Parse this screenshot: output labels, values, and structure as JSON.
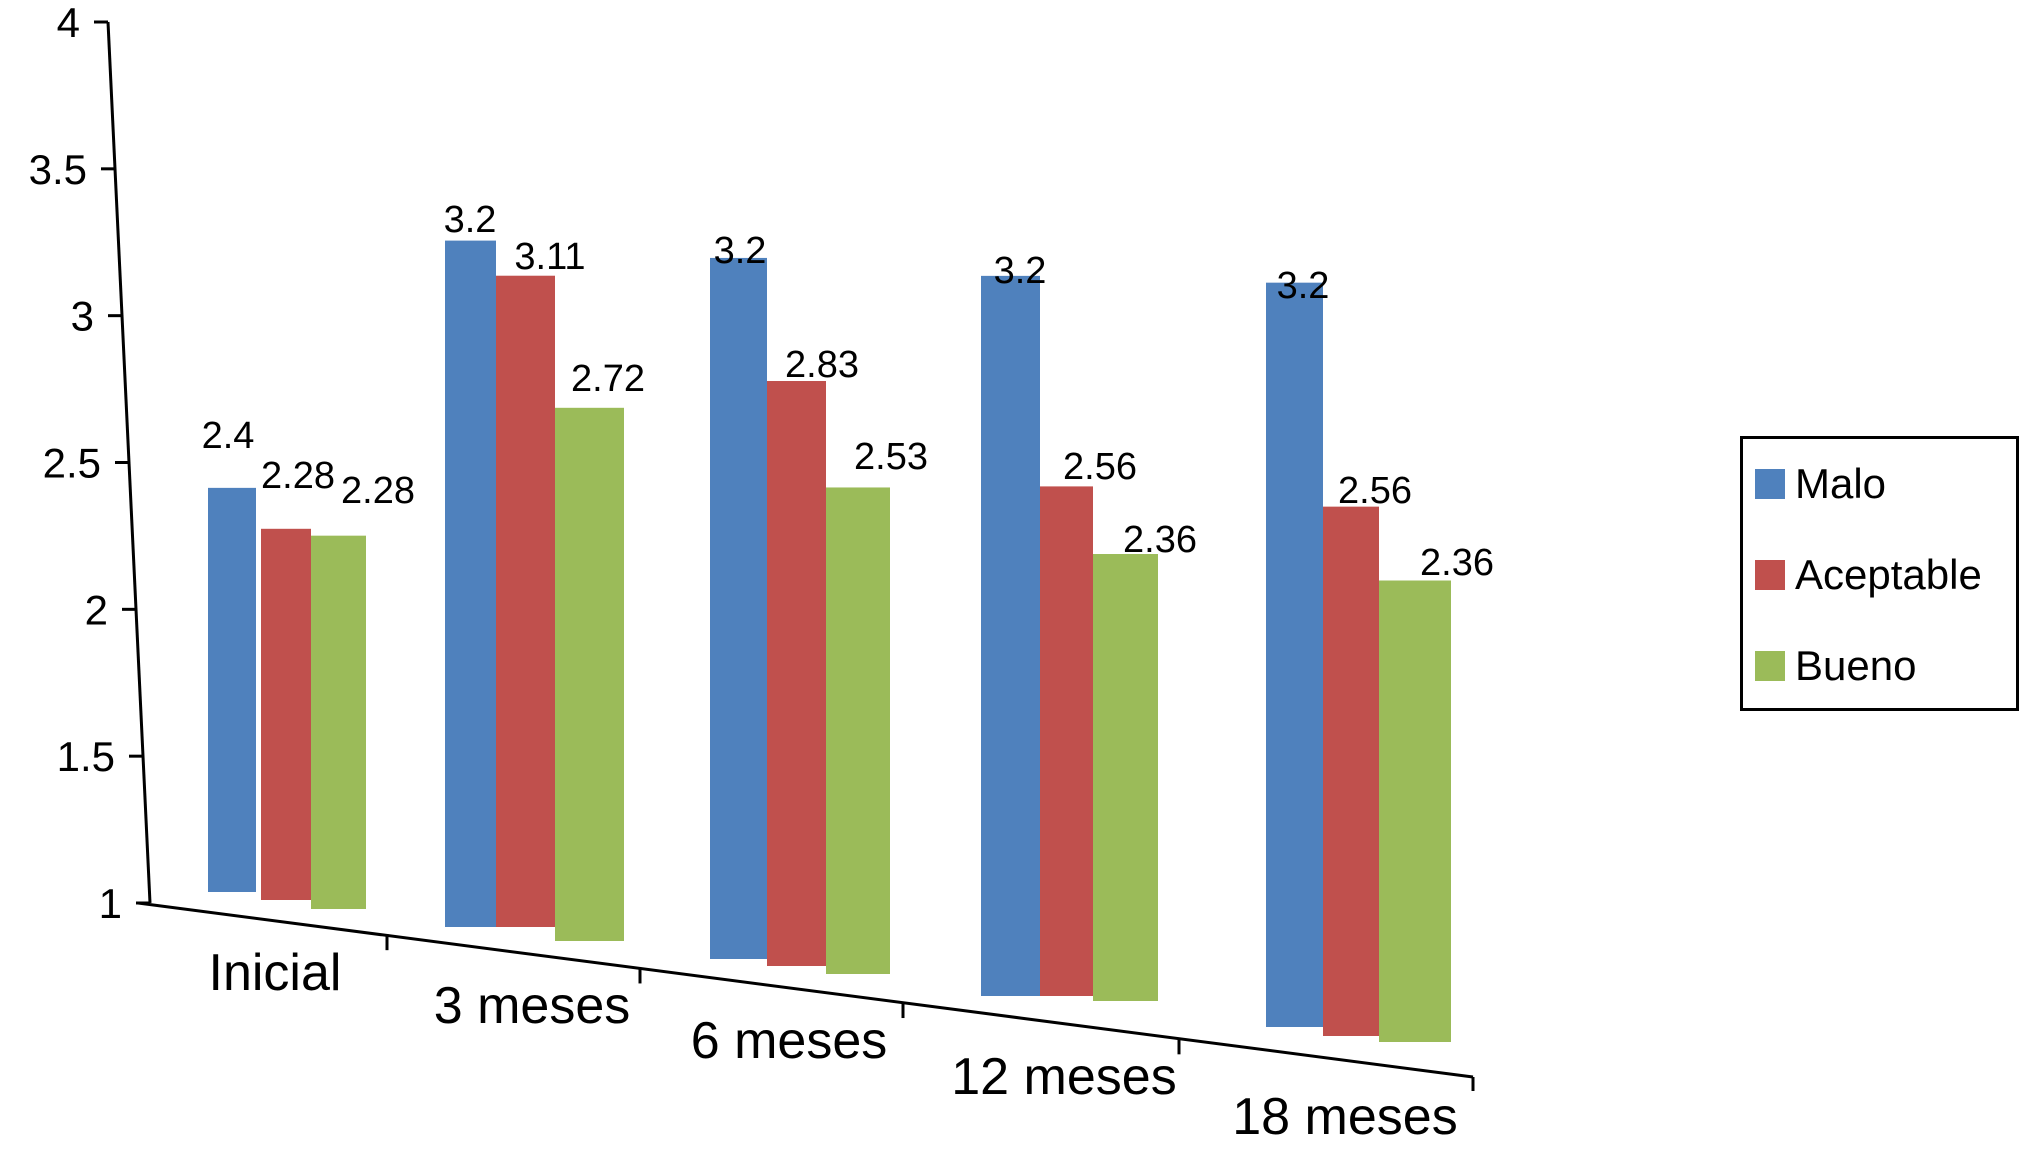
{
  "chart_data": {
    "type": "bar",
    "categories": [
      "Inicial",
      "3 meses",
      "6 meses",
      "12 meses",
      "18 meses"
    ],
    "series": [
      {
        "name": "Malo",
        "color": "#4f81bd",
        "values": [
          2.4,
          3.2,
          3.2,
          3.2,
          3.2
        ]
      },
      {
        "name": "Aceptable",
        "color": "#c0504d",
        "values": [
          2.28,
          3.11,
          2.83,
          2.56,
          2.56
        ]
      },
      {
        "name": "Bueno",
        "color": "#9bbb59",
        "values": [
          2.28,
          2.72,
          2.53,
          2.36,
          2.36
        ]
      }
    ],
    "y_ticks": [
      "1",
      "1.5",
      "2",
      "2.5",
      "3",
      "3.5",
      "4"
    ],
    "ylim": [
      1,
      4
    ],
    "title": "",
    "xlabel": "",
    "ylabel": "",
    "legend": "right",
    "grid": false
  },
  "legend": {
    "items": [
      {
        "label": "Malo",
        "color": "#4f81bd"
      },
      {
        "label": "Aceptable",
        "color": "#c0504d"
      },
      {
        "label": "Bueno",
        "color": "#9bbb59"
      }
    ]
  }
}
